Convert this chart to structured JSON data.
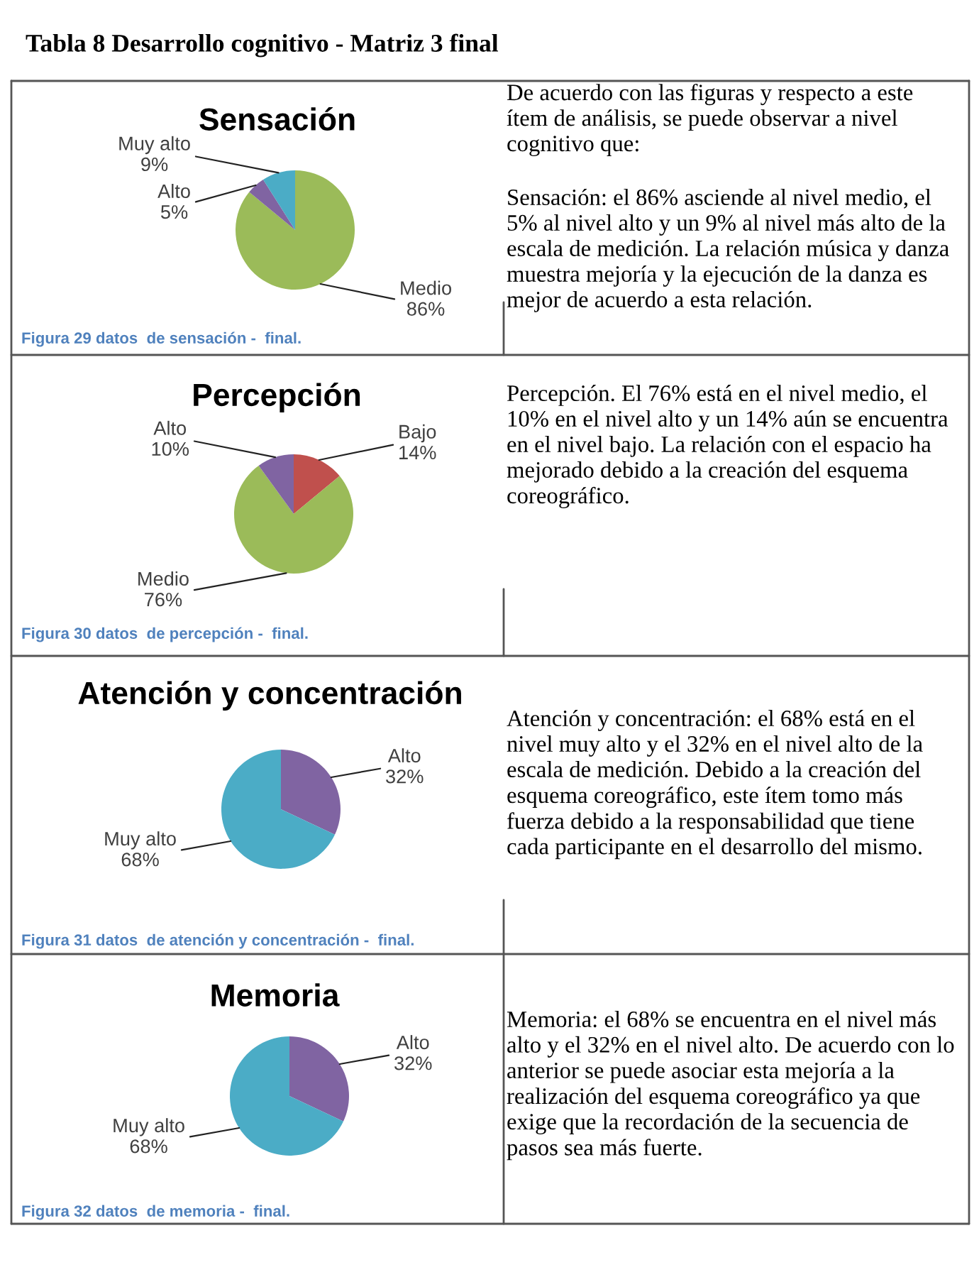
{
  "chart_data": [
    {
      "type": "pie",
      "title": "Sensación",
      "categories": [
        "Medio",
        "Alto",
        "Muy alto"
      ],
      "values": [
        86,
        5,
        9
      ],
      "colors": [
        "#9bbb59",
        "#8064a2",
        "#4bacc6"
      ],
      "value_labels": [
        "86%",
        "5%",
        "9%"
      ],
      "annotations": [
        "Tabla 8 Desarrollo cognitivo - Matriz 3 final",
        "De acuerdo con las figuras y respecto a este ítem de análisis, se puede observar a nivel cognitivo que:",
        "Sensación: el 86% asciende al nivel medio, el 5% al nivel alto y un 9% al nivel más alto de la escala de medición. La relación música y danza muestra mejoría y la ejecución de la danza es mejor de acuerdo a esta relación.",
        "Figura 29 datos  de sensación -  final."
      ]
    },
    {
      "type": "pie",
      "title": "Percepción",
      "categories": [
        "Bajo",
        "Medio",
        "Alto"
      ],
      "values": [
        14,
        76,
        10
      ],
      "colors": [
        "#c0504d",
        "#9bbb59",
        "#8064a2"
      ],
      "value_labels": [
        "14%",
        "76%",
        "10%"
      ],
      "annotations": [
        "Percepción. El 76% está en el nivel medio, el 10% en el nivel alto y un 14% aún se encuentra en el nivel bajo. La relación con el espacio ha mejorado debido a la creación del esquema coreográfico.",
        "Figura 30 datos  de percepción -  final."
      ]
    },
    {
      "type": "pie",
      "title": "Atención y concentración",
      "categories": [
        "Alto",
        "Muy alto"
      ],
      "values": [
        32,
        68
      ],
      "colors": [
        "#8064a2",
        "#4bacc6"
      ],
      "value_labels": [
        "32%",
        "68%"
      ],
      "annotations": [
        "Atención y concentración: el 68% está en el nivel muy alto y el 32% en el nivel alto de la escala de medición. Debido a la creación del esquema coreográfico, este ítem tomo más fuerza debido a la responsabilidad que tiene cada participante en el desarrollo del mismo.",
        "Figura 31 datos  de atención y concentración -  final."
      ]
    },
    {
      "type": "pie",
      "title": "Memoria",
      "categories": [
        "Alto",
        "Muy alto"
      ],
      "values": [
        32,
        68
      ],
      "colors": [
        "#8064a2",
        "#4bacc6"
      ],
      "value_labels": [
        "32%",
        "68%"
      ],
      "annotations": [
        "Memoria: el 68% se encuentra en el nivel más alto y el 32% en el nivel alto. De acuerdo con lo anterior se puede asociar esta mejoría a la realización del esquema coreográfico ya que exige que la recordación de la secuencia de pasos sea más fuerte.",
        "Figura 32 datos  de memoria -  final."
      ]
    }
  ]
}
